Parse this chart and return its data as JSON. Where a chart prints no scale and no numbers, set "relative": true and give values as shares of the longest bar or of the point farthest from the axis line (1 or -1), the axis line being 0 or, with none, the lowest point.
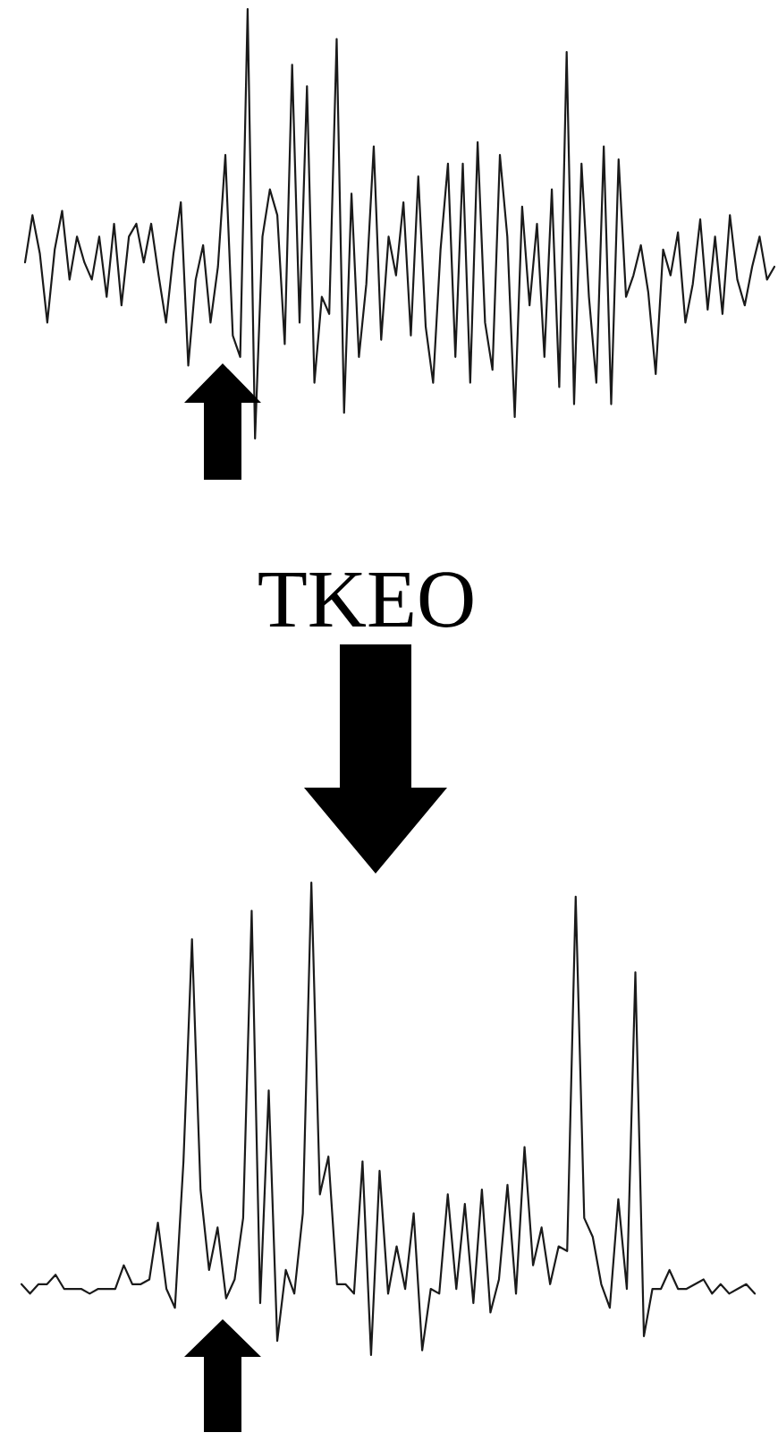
{
  "chart_data": [
    {
      "type": "line",
      "relative": true,
      "categories": [
        null,
        null,
        null,
        null,
        null,
        null,
        null,
        null,
        null,
        null,
        null,
        null,
        null,
        null,
        null,
        null,
        null,
        null,
        null,
        null,
        null,
        null,
        null,
        null,
        null,
        null,
        null,
        null,
        null,
        null,
        null,
        null,
        null,
        null,
        null,
        null,
        null,
        null,
        null,
        null,
        null,
        null,
        null,
        null,
        null,
        null,
        null,
        null,
        null,
        null,
        null,
        null,
        null,
        null,
        null,
        null,
        null,
        null,
        null,
        null,
        null,
        null,
        null,
        null,
        null,
        null,
        null,
        null,
        null,
        null,
        null,
        null,
        null,
        null,
        null,
        null,
        null,
        null,
        null,
        null,
        null,
        null,
        null,
        null,
        null,
        null,
        null,
        null,
        null,
        null,
        null,
        null,
        null,
        null,
        null,
        null,
        null,
        null,
        null,
        null,
        null,
        null
      ],
      "series": [
        {
          "color": "#1a1a1a",
          "values": [
            0.41,
            0.52,
            0.43,
            0.27,
            0.44,
            0.53,
            0.37,
            0.47,
            0.41,
            0.37,
            0.47,
            0.33,
            0.5,
            0.31,
            0.47,
            0.5,
            0.41,
            0.5,
            0.38,
            0.27,
            0.43,
            0.55,
            0.17,
            0.37,
            0.45,
            0.27,
            0.4,
            0.66,
            0.24,
            0.19,
            1,
            0,
            0.47,
            0.58,
            0.52,
            0.22,
            0.87,
            0.27,
            0.82,
            0.13,
            0.33,
            0.29,
            0.93,
            0.06,
            0.57,
            0.19,
            0.36,
            0.68,
            0.23,
            0.47,
            0.38,
            0.55,
            0.24,
            0.61,
            0.26,
            0.13,
            0.44,
            0.64,
            0.19,
            0.64,
            0.13,
            0.69,
            0.27,
            0.16,
            0.66,
            0.47,
            0.05,
            0.54,
            0.31,
            0.5,
            0.19,
            0.58,
            0.12,
            0.9,
            0.08,
            0.64,
            0.33,
            0.13,
            0.68,
            0.08,
            0.65,
            0.33,
            0.38,
            0.45,
            0.34,
            0.15,
            0.44,
            0.38,
            0.48,
            0.27,
            0.36,
            0.51,
            0.3,
            0.47,
            0.29,
            0.52,
            0.37,
            0.31,
            0.4,
            0.47,
            0.37,
            0.4
          ]
        }
      ]
    },
    {
      "type": "line",
      "relative": true,
      "annotations": [
        "TKEO"
      ],
      "categories": [
        null,
        null,
        null,
        null,
        null,
        null,
        null,
        null,
        null,
        null,
        null,
        null,
        null,
        null,
        null,
        null,
        null,
        null,
        null,
        null,
        null,
        null,
        null,
        null,
        null,
        null,
        null,
        null,
        null,
        null,
        null,
        null,
        null,
        null,
        null,
        null,
        null,
        null,
        null,
        null,
        null,
        null,
        null,
        null,
        null,
        null,
        null,
        null,
        null,
        null,
        null,
        null,
        null,
        null,
        null,
        null,
        null,
        null,
        null,
        null,
        null,
        null,
        null,
        null,
        null,
        null,
        null,
        null,
        null,
        null,
        null,
        null,
        null,
        null,
        null,
        null,
        null,
        null,
        null,
        null,
        null,
        null,
        null,
        null,
        null,
        null,
        null
      ],
      "series": [
        {
          "color": "#1a1a1a",
          "values": [
            0.15,
            0.13,
            0.15,
            0.15,
            0.17,
            0.14,
            0.14,
            0.14,
            0.13,
            0.14,
            0.14,
            0.14,
            0.19,
            0.15,
            0.15,
            0.16,
            0.28,
            0.14,
            0.1,
            0.41,
            0.88,
            0.35,
            0.18,
            0.27,
            0.12,
            0.16,
            0.29,
            0.94,
            0.11,
            0.56,
            0.03,
            0.18,
            0.13,
            0.3,
            1,
            0.34,
            0.42,
            0.15,
            0.15,
            0.13,
            0.41,
            0,
            0.39,
            0.13,
            0.23,
            0.14,
            0.3,
            0.01,
            0.14,
            0.13,
            0.34,
            0.14,
            0.32,
            0.11,
            0.35,
            0.09,
            0.16,
            0.36,
            0.13,
            0.44,
            0.19,
            0.27,
            0.15,
            0.23,
            0.22,
            0.97,
            0.29,
            0.25,
            0.15,
            0.1,
            0.33,
            0.14,
            0.81,
            0.04,
            0.14,
            0.14,
            0.18,
            0.14,
            0.14,
            0.15,
            0.16,
            0.13,
            0.15,
            0.13,
            0.14,
            0.15,
            0.13
          ]
        }
      ]
    }
  ]
}
